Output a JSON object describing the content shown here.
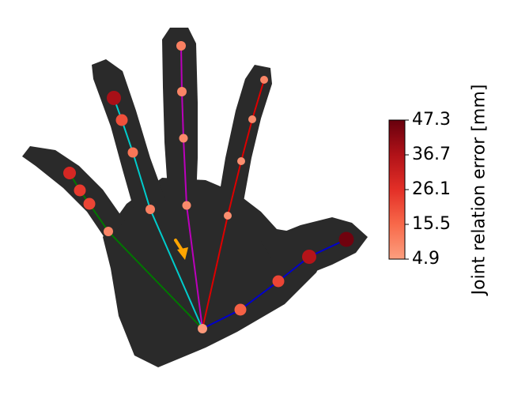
{
  "colorbar": {
    "title": "Joint relation error [mm]",
    "ticks": [
      "47.3",
      "36.7",
      "26.1",
      "15.5",
      "4.9"
    ],
    "min": 4.9,
    "max": 47.3,
    "color_low": "#fb8a6a",
    "color_high": "#67000d"
  },
  "bone_colors": {
    "thumb": "#0000cc",
    "index": "#dd0000",
    "middle": "#bb00bb",
    "ring": "#00cccc",
    "little": "#007700"
  },
  "arrow_color": "#ffa500",
  "hand_color": "#2a2a2a",
  "joint_errors": {
    "wrist": 6,
    "thumb": [
      17,
      22,
      36,
      46
    ],
    "index": [
      8,
      8,
      9,
      10
    ],
    "middle": [
      9,
      9,
      10,
      11
    ],
    "ring": [
      11,
      13,
      20,
      38
    ],
    "little": [
      10,
      22,
      24,
      29
    ]
  }
}
